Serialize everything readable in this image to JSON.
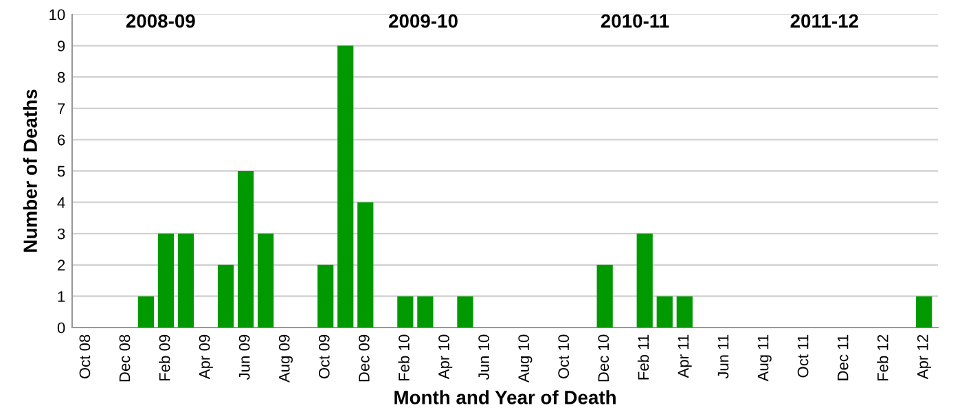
{
  "chart_data": {
    "type": "bar",
    "xlabel": "Month and Year of Death",
    "ylabel": "Number of Deaths",
    "categories": [
      "Oct 08",
      null,
      "Dec 08",
      null,
      "Feb 09",
      null,
      "Apr 09",
      null,
      "Jun 09",
      null,
      "Aug 09",
      null,
      "Oct 09",
      null,
      "Dec 09",
      null,
      "Feb 10",
      null,
      "Apr 10",
      null,
      "Jun 10",
      null,
      "Aug 10",
      null,
      "Oct 10",
      null,
      "Dec 10",
      null,
      "Feb 11",
      null,
      "Apr 11",
      null,
      "Jun 11",
      null,
      "Aug 11",
      null,
      "Oct 11",
      null,
      "Dec 11",
      null,
      "Feb 12",
      null,
      "Apr 12"
    ],
    "values": [
      0,
      0,
      0,
      1,
      3,
      3,
      0,
      2,
      5,
      3,
      0,
      0,
      2,
      9,
      4,
      0,
      1,
      1,
      0,
      1,
      0,
      0,
      0,
      0,
      0,
      0,
      2,
      0,
      3,
      1,
      1,
      0,
      0,
      0,
      0,
      0,
      0,
      0,
      0,
      0,
      0,
      0,
      1
    ],
    "color": "#009900",
    "ylim": [
      0,
      10
    ],
    "yticks": [
      0,
      1,
      2,
      3,
      4,
      5,
      6,
      7,
      8,
      9,
      10
    ],
    "grid": "y",
    "annotations": [
      "2008-09",
      "2009-10",
      "2010-11",
      "2011-12"
    ]
  }
}
